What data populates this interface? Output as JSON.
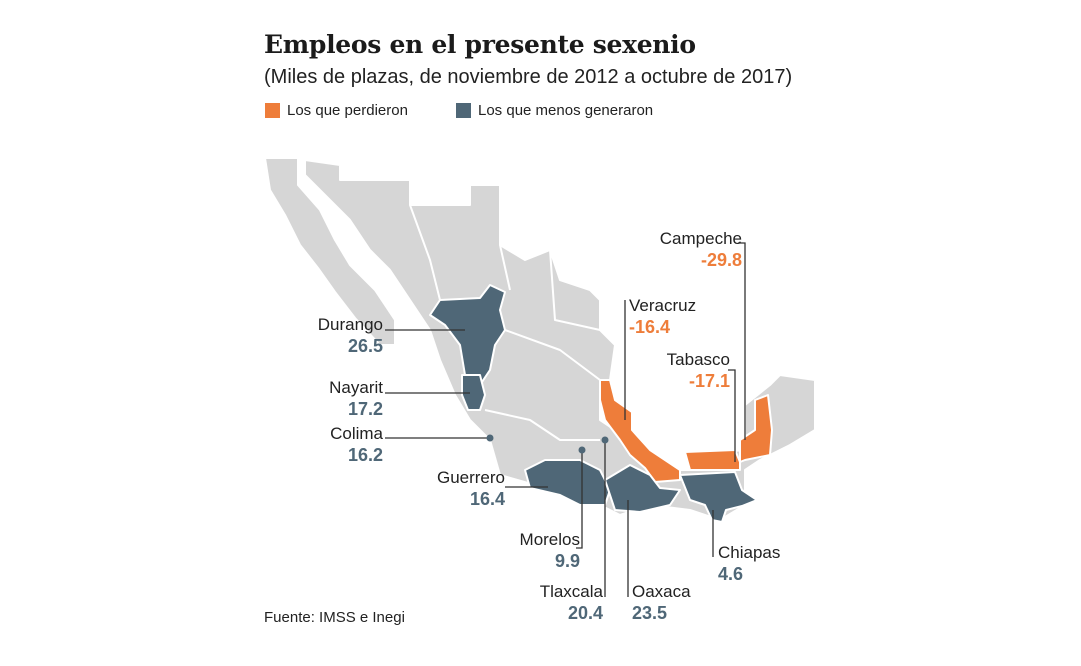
{
  "title": "Empleos en el presente sexenio",
  "subtitle": "(Miles de plazas, de noviembre de 2012 a octubre de 2017)",
  "legend": [
    {
      "label": "Los que perdieron",
      "color": "#ee7d3a"
    },
    {
      "label": "Los que menos generaron",
      "color": "#4f6777"
    }
  ],
  "colors": {
    "base_map": "#d6d6d6",
    "lost": "#ee7d3a",
    "least_generated": "#4f6777"
  },
  "states": [
    {
      "name": "Durango",
      "value": "26.5",
      "category": "least_generated"
    },
    {
      "name": "Nayarit",
      "value": "17.2",
      "category": "least_generated"
    },
    {
      "name": "Colima",
      "value": "16.2",
      "category": "least_generated"
    },
    {
      "name": "Guerrero",
      "value": "16.4",
      "category": "least_generated"
    },
    {
      "name": "Morelos",
      "value": "9.9",
      "category": "least_generated"
    },
    {
      "name": "Tlaxcala",
      "value": "20.4",
      "category": "least_generated"
    },
    {
      "name": "Oaxaca",
      "value": "23.5",
      "category": "least_generated"
    },
    {
      "name": "Chiapas",
      "value": "4.6",
      "category": "least_generated"
    },
    {
      "name": "Campeche",
      "value": "-29.8",
      "category": "lost"
    },
    {
      "name": "Veracruz",
      "value": "-16.4",
      "category": "lost"
    },
    {
      "name": "Tabasco",
      "value": "-17.1",
      "category": "lost"
    }
  ],
  "source": "Fuente: IMSS e Inegi"
}
